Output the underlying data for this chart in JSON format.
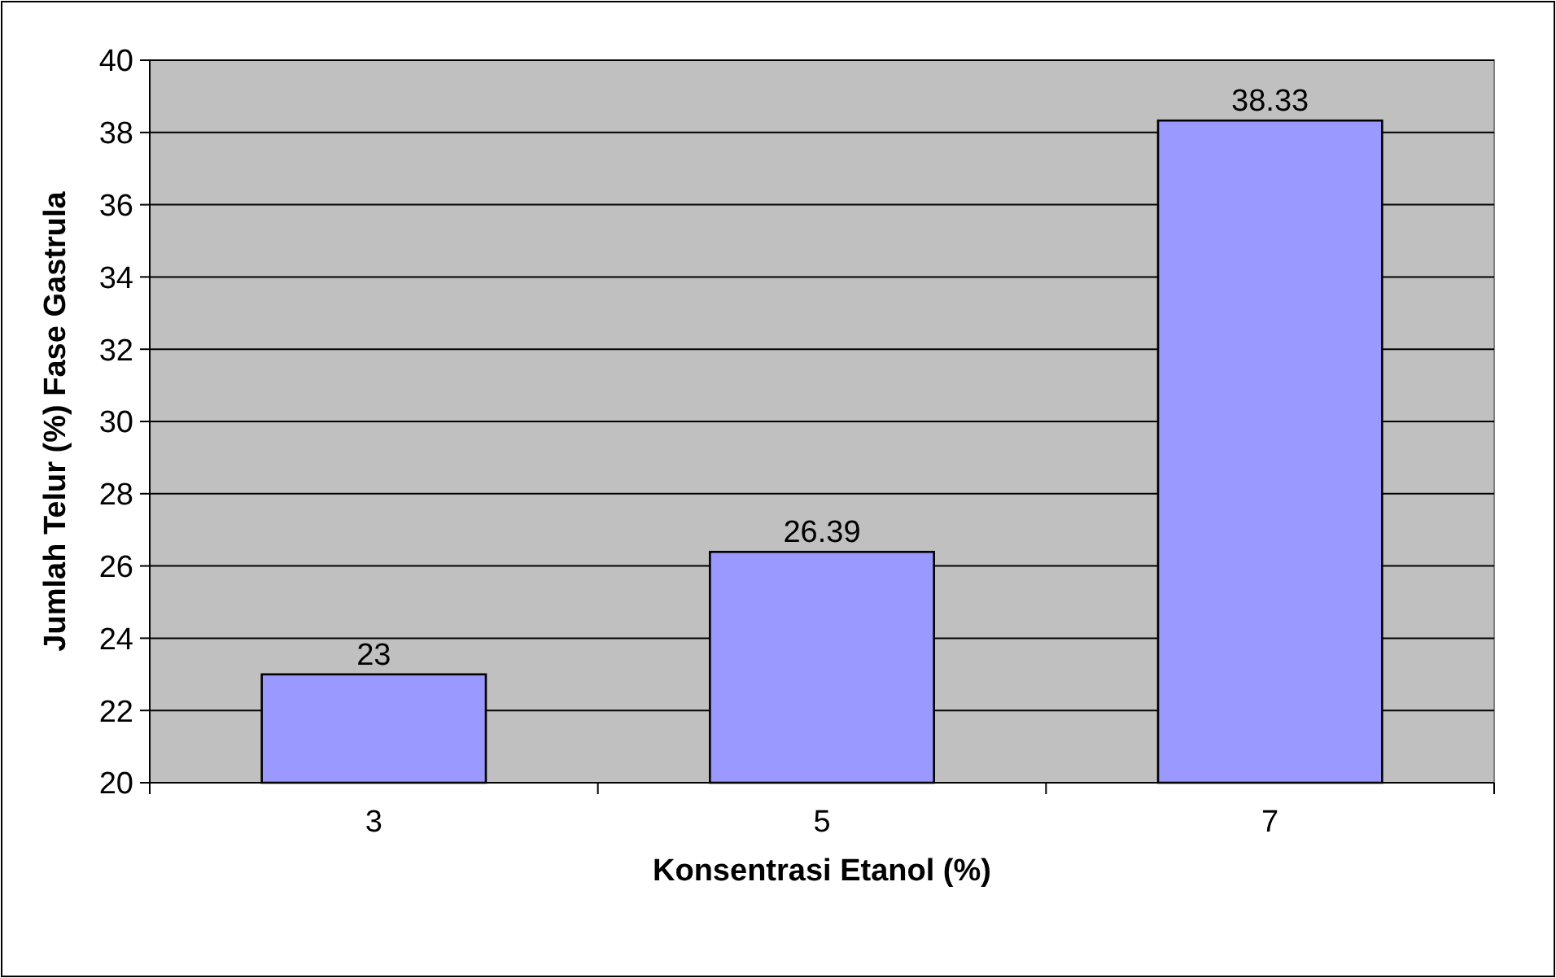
{
  "chart_data": {
    "type": "bar",
    "xlabel": "Konsentrasi Etanol (%)",
    "ylabel": "Jumlah Telur (%) Fase Gastrula",
    "categories": [
      "3",
      "5",
      "7"
    ],
    "values": [
      23,
      26.39,
      38.33
    ],
    "color": "#9999ff",
    "value_labels": [
      "23",
      "26.39",
      "38.33"
    ],
    "ylim": [
      20,
      40
    ],
    "yticks": [
      20,
      22,
      24,
      26,
      28,
      30,
      32,
      34,
      36,
      38,
      40
    ],
    "grid": "y"
  }
}
